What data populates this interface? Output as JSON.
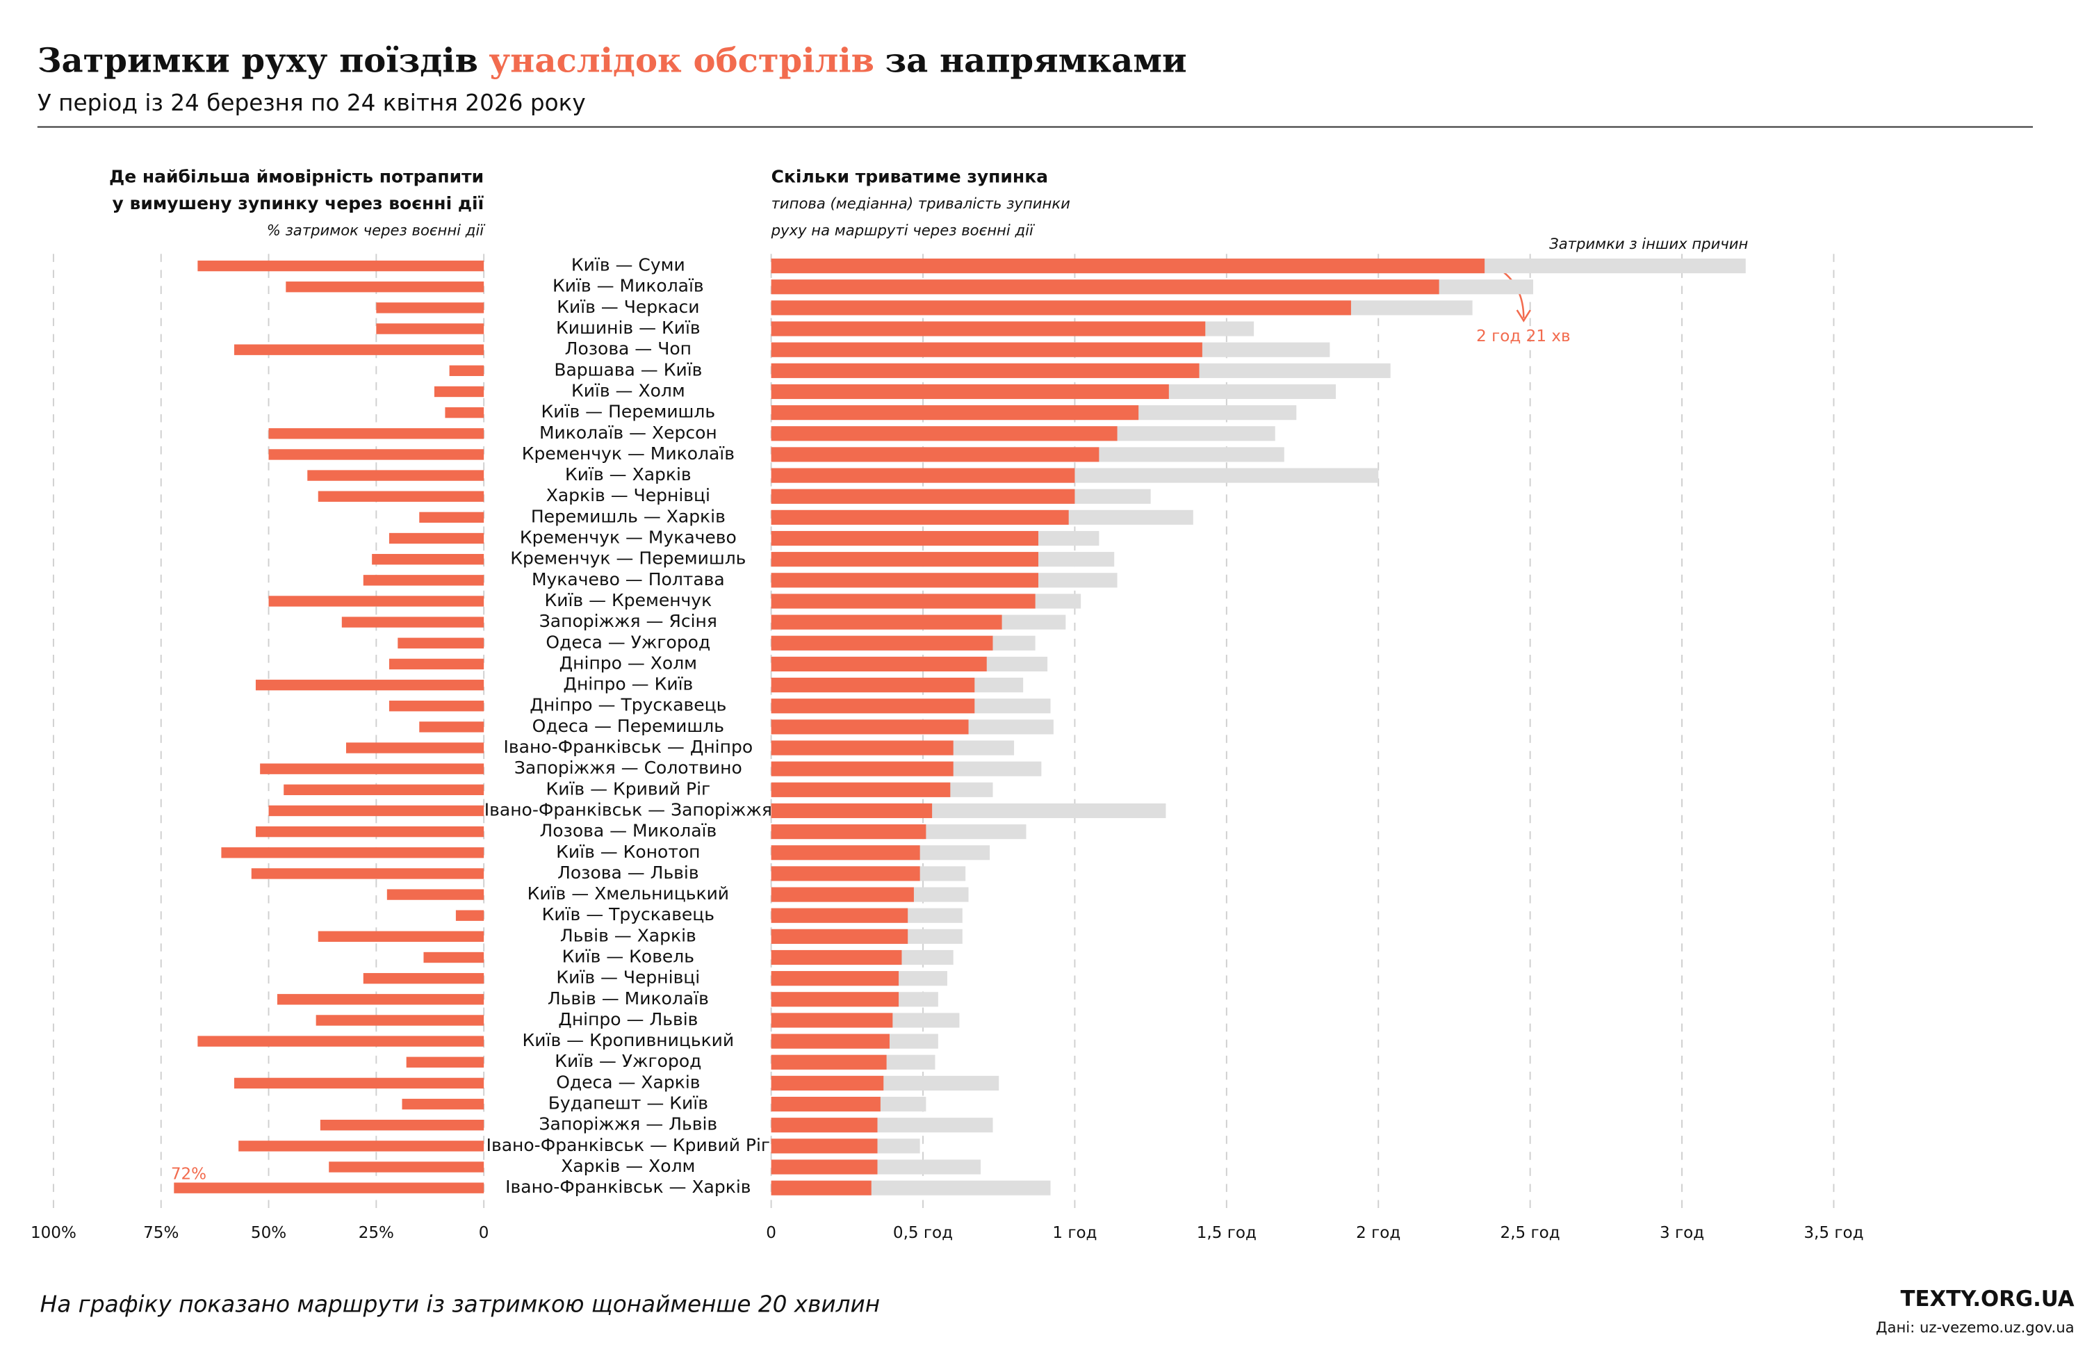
{
  "header": {
    "title": [
      "Затримки руху поїздів",
      "унаслідок обстрілів",
      "за напрямками"
    ],
    "subtitle": "У період із 24 березня по 24 квітня 2026 року"
  },
  "footer": {
    "note": "На графіку показано маршрути із затримкою щонайменше 20 хвилин",
    "brand": "TEXTY.ORG.UA",
    "source": "Дані: uz-vezemo.uz.gov.ua"
  },
  "chart_data": [
    {
      "type": "bar",
      "orientation": "horizontal",
      "title": [
        "Де найбільша ймовірність потрапити",
        "у вимушену зупинку через воєнні дії"
      ],
      "subtitle": "% затримок через воєнні дії",
      "color": "#f26b4e",
      "grid": true,
      "values": [
        66.5,
        46,
        25,
        25,
        58,
        8,
        11.5,
        9,
        50,
        50,
        41,
        38.5,
        15,
        22,
        26,
        28,
        50,
        33,
        20,
        22,
        53,
        22,
        15,
        32,
        52,
        46.5,
        50,
        53,
        61,
        54,
        22.5,
        6.5,
        38.5,
        14,
        28,
        48,
        39,
        66.5,
        18,
        58,
        19,
        38,
        57,
        36,
        72
      ],
      "value_labels": [
        null,
        null,
        null,
        null,
        null,
        null,
        null,
        null,
        null,
        null,
        null,
        null,
        null,
        null,
        null,
        null,
        null,
        null,
        null,
        null,
        null,
        null,
        null,
        null,
        null,
        null,
        null,
        null,
        null,
        null,
        null,
        null,
        null,
        null,
        null,
        null,
        null,
        null,
        null,
        null,
        null,
        null,
        null,
        null,
        "72%"
      ],
      "xlim": [
        0,
        100
      ],
      "xticks": [
        {
          "value": 100,
          "label": "100%"
        },
        {
          "value": 75,
          "label": "75%"
        },
        {
          "value": 50,
          "label": "50%"
        },
        {
          "value": 25,
          "label": "25%"
        },
        0
      ]
    },
    {
      "type": "bar",
      "orientation": "horizontal",
      "title": "Скільки триватиме зупинка",
      "subtitle": [
        "типова (медіанна) тривалість зупинки",
        "руху на маршруті через воєнні дії"
      ],
      "grid": true,
      "categories": [
        "Київ — Суми",
        "Київ — Миколаїв",
        "Київ — Черкаси",
        "Кишинів — Київ",
        "Лозова — Чоп",
        "Варшава — Київ",
        "Київ — Холм",
        "Київ — Перемишль",
        "Миколаїв — Херсон",
        "Кременчук — Миколаїв",
        "Київ — Харків",
        "Харків — Чернівці",
        "Перемишль — Харків",
        "Кременчук — Мукачево",
        "Кременчук — Перемишль",
        "Мукачево — Полтава",
        "Київ — Кременчук",
        "Запоріжжя — Ясіня",
        "Одеса — Ужгород",
        "Дніпро — Холм",
        "Дніпро — Київ",
        "Дніпро — Трускавець",
        "Одеса — Перемишль",
        "Івано-Франківськ — Дніпро",
        "Запоріжжя — Солотвино",
        "Київ — Кривий Ріг",
        "Івано-Франківськ — Запоріжжя",
        "Лозова — Миколаїв",
        "Київ — Конотоп",
        "Лозова — Львів",
        "Київ — Хмельницький",
        "Київ — Трускавець",
        "Львів — Харків",
        "Київ — Ковель",
        "Київ — Чернівці",
        "Львів — Миколаїв",
        "Дніпро — Львів",
        "Київ — Кропивницький",
        "Київ — Ужгород",
        "Одеса — Харків",
        "Будапешт — Київ",
        "Запоріжжя — Львів",
        "Івано-Франківськ — Кривий Ріг",
        "Харків — Холм",
        "Івано-Франківськ — Харків"
      ],
      "series": [
        {
          "color": "#f26b4e",
          "values": [
            2.35,
            2.2,
            1.91,
            1.43,
            1.42,
            1.41,
            1.31,
            1.21,
            1.14,
            1.08,
            1.0,
            1.0,
            0.98,
            0.88,
            0.88,
            0.88,
            0.87,
            0.76,
            0.73,
            0.71,
            0.67,
            0.67,
            0.65,
            0.6,
            0.6,
            0.59,
            0.53,
            0.51,
            0.49,
            0.49,
            0.47,
            0.45,
            0.45,
            0.43,
            0.42,
            0.42,
            0.4,
            0.39,
            0.38,
            0.37,
            0.36,
            0.35,
            0.35,
            0.35,
            0.33
          ],
          "value_labels": [
            "2 год 21 хв",
            null,
            null,
            null,
            null,
            null,
            null,
            null,
            null,
            null,
            null,
            null,
            null,
            null,
            null,
            null,
            null,
            null,
            null,
            null,
            null,
            null,
            null,
            null,
            null,
            null,
            null,
            null,
            null,
            null,
            null,
            null,
            null,
            null,
            null,
            null,
            null,
            null,
            null,
            null,
            null,
            null,
            null,
            null,
            null
          ]
        },
        {
          "name": "Затримки з інших причин",
          "color": "#dedede",
          "values": [
            3.21,
            2.51,
            2.31,
            1.59,
            1.84,
            2.04,
            1.86,
            1.73,
            1.66,
            1.69,
            2.0,
            1.25,
            1.39,
            1.08,
            1.13,
            1.14,
            1.02,
            0.97,
            0.87,
            0.91,
            0.83,
            0.92,
            0.93,
            0.8,
            0.89,
            0.73,
            1.3,
            0.84,
            0.72,
            0.64,
            0.65,
            0.63,
            0.63,
            0.6,
            0.58,
            0.55,
            0.62,
            0.55,
            0.54,
            0.75,
            0.51,
            0.73,
            0.49,
            0.69,
            0.92
          ]
        }
      ],
      "xlim": [
        0,
        3.5
      ],
      "xticks": [
        0,
        {
          "value": 0.5,
          "label": "0,5 год"
        },
        {
          "value": 1,
          "label": "1 год"
        },
        {
          "value": 1.5,
          "label": "1,5 год"
        },
        {
          "value": 2,
          "label": "2 год"
        },
        {
          "value": 2.5,
          "label": "2,5 год"
        },
        {
          "value": 3,
          "label": "3 год"
        },
        {
          "value": 3.5,
          "label": "3,5 год"
        }
      ]
    }
  ]
}
